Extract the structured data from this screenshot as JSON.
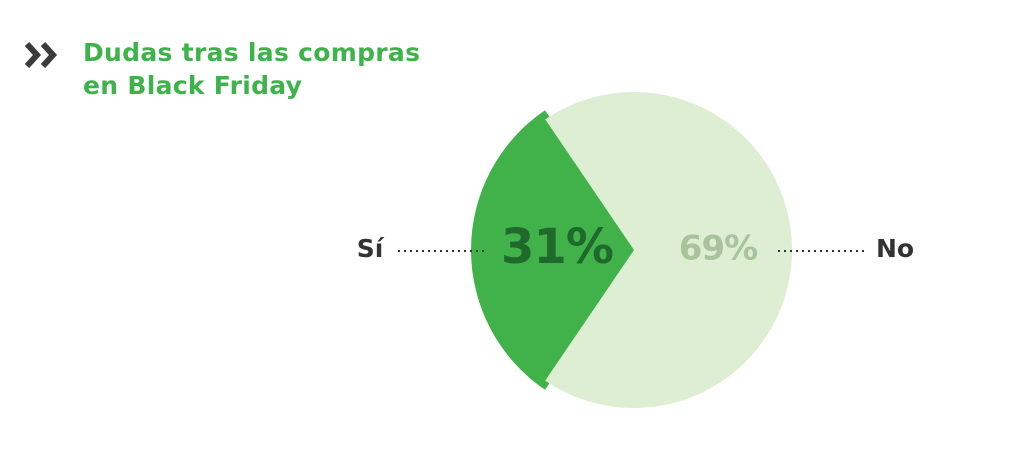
{
  "chart_data": {
    "type": "pie",
    "title": "Dudas tras las compras en Black Friday",
    "categories": [
      "Sí",
      "No"
    ],
    "values": [
      31,
      69
    ],
    "value_labels": [
      "31%",
      "69%"
    ],
    "colors": [
      "#41b24a",
      "#ddeed3"
    ],
    "label_colors": [
      "#1f6a2b",
      "#a9c39c"
    ]
  }
}
